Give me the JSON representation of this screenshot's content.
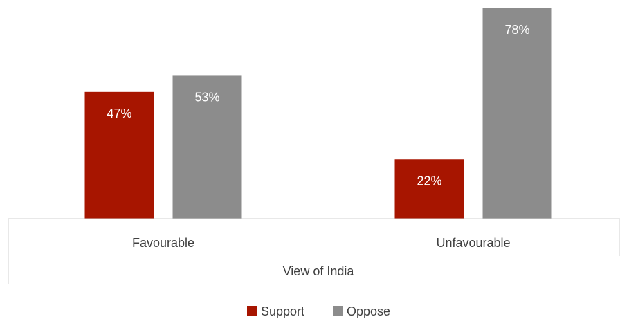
{
  "chart_data": {
    "type": "bar",
    "categories": [
      "Favourable",
      "Unfavourable"
    ],
    "series": [
      {
        "name": "Support",
        "values": [
          47,
          22
        ],
        "labels": [
          "47%",
          "22%"
        ],
        "color": "#A71500"
      },
      {
        "name": "Oppose",
        "values": [
          53,
          78
        ],
        "labels": [
          "53%",
          "78%"
        ],
        "color": "#8C8C8C"
      }
    ],
    "xlabel": "View of India",
    "ylim": [
      0,
      80
    ],
    "grid": false,
    "legend": "bottom"
  }
}
